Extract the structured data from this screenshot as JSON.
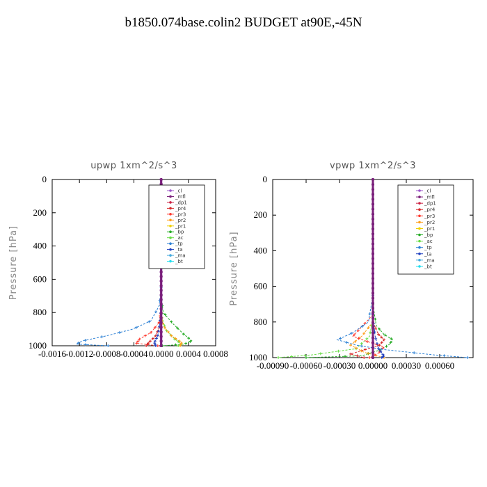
{
  "title": "b1850.074base.colin2  BUDGET at90E,-45N",
  "legend_entries": [
    "_cl",
    "_mfl",
    "_dp1",
    "_pr4",
    "_pr3",
    "_pr2",
    "_pr1",
    "_bp",
    "_ac",
    "_tp",
    "_ta",
    "_ma",
    "_bt"
  ],
  "legend_colors": [
    "#9b55c9",
    "#7a1f7a",
    "#cc2244",
    "#d62728",
    "#ff3b30",
    "#ff9f1c",
    "#f0d000",
    "#22aa22",
    "#66dd44",
    "#2a7fd4",
    "#1f3fbf",
    "#44aadd",
    "#22ddee"
  ],
  "chart_data": [
    {
      "type": "line",
      "title": "upwp   1xm^2/s^3",
      "ylabel": "Pressure [hPa]",
      "xlim": [
        -0.0016,
        0.0008
      ],
      "ylim": [
        1000,
        0
      ],
      "x_ticks": [
        -0.0016,
        -0.0012,
        -0.0008,
        -0.0004,
        0.0,
        0.0004,
        0.0008
      ],
      "x_tick_labels": [
        "-0.0016",
        "-0.0012",
        "-0.0008",
        "-0.0004",
        "0.0000",
        "0.0004",
        "0.0008"
      ],
      "y_ticks": [
        0,
        200,
        400,
        600,
        800,
        1000
      ],
      "legend_position": "top-right",
      "series": [
        {
          "name": "_bp",
          "pressure": [
            700,
            800,
            870,
            930,
            970,
            990,
            1000
          ],
          "values": [
            0,
            3e-05,
            0.00018,
            0.00033,
            0.00045,
            0.00034,
            2e-05
          ]
        },
        {
          "name": "_ac",
          "pressure": [
            760,
            850,
            910,
            960,
            990,
            1000
          ],
          "values": [
            0,
            2e-05,
            8e-05,
            0.0002,
            0.0003,
            0.00025
          ]
        },
        {
          "name": "_pr2",
          "pressure": [
            800,
            880,
            940,
            980,
            1000
          ],
          "values": [
            0,
            3e-05,
            0.00015,
            0.0003,
            0.00028
          ]
        },
        {
          "name": "_pr3",
          "pressure": [
            780,
            860,
            920,
            960,
            985,
            1000
          ],
          "values": [
            0,
            -3e-05,
            -0.00015,
            -0.00032,
            -0.00036,
            -5e-05
          ]
        },
        {
          "name": "_pr4",
          "pressure": [
            800,
            880,
            940,
            980,
            1000
          ],
          "values": [
            0,
            -2e-05,
            -8e-05,
            -0.00018,
            -0.00022
          ]
        },
        {
          "name": "_tp",
          "pressure": [
            650,
            760,
            850,
            900,
            940,
            970,
            990,
            1000
          ],
          "values": [
            0,
            -3e-05,
            -0.00015,
            -0.00042,
            -0.0008,
            -0.00115,
            -0.00125,
            -0.00078
          ]
        },
        {
          "name": "_ta",
          "pressure": [
            760,
            870,
            940,
            980,
            1000
          ],
          "values": [
            0,
            -2e-05,
            -5e-05,
            -0.0001,
            -8e-05
          ]
        },
        {
          "name": "_cl",
          "pressure": [
            0,
            1000
          ],
          "values": [
            0,
            0
          ]
        },
        {
          "name": "_mfl",
          "pressure": [
            0,
            1000
          ],
          "values": [
            0,
            0
          ]
        }
      ]
    },
    {
      "type": "line",
      "title": "vpwp   1xm^2/s^3",
      "ylabel": "Pressure [hPa]",
      "xlim": [
        -0.0009,
        0.0009
      ],
      "ylim": [
        1000,
        0
      ],
      "x_ticks": [
        -0.0009,
        -0.0006,
        -0.0003,
        0.0,
        0.0003,
        0.0006
      ],
      "x_tick_labels": [
        "-0.00090",
        "-0.00060",
        "-0.00030",
        "0.00000",
        "0.00030",
        "0.00060"
      ],
      "y_ticks": [
        0,
        200,
        400,
        600,
        800,
        1000
      ],
      "legend_position": "top-right",
      "series": [
        {
          "name": "_bp",
          "pressure": [
            700,
            820,
            870,
            900,
            930,
            960,
            990,
            1000
          ],
          "values": [
            0,
            3e-05,
            0.0001,
            0.00018,
            0.00014,
            5e-05,
            -0.0001,
            -0.0006
          ]
        },
        {
          "name": "_ac",
          "pressure": [
            780,
            880,
            950,
            985,
            1000
          ],
          "values": [
            0,
            -3e-05,
            -0.00015,
            -0.00055,
            -0.00085
          ]
        },
        {
          "name": "_pr2",
          "pressure": [
            800,
            880,
            930,
            970,
            1000
          ],
          "values": [
            0,
            -0.0001,
            -0.0002,
            -8e-05,
            0.0001
          ]
        },
        {
          "name": "_pr3",
          "pressure": [
            760,
            840,
            880,
            910,
            940,
            975,
            1000
          ],
          "values": [
            0,
            -0.00012,
            -0.00018,
            -5e-05,
            0.0001,
            5e-05,
            -3e-05
          ]
        },
        {
          "name": "_pr4",
          "pressure": [
            800,
            870,
            900,
            930,
            980,
            1000
          ],
          "values": [
            0,
            5e-05,
            0.0001,
            6e-05,
            -0.0002,
            -8e-05
          ]
        },
        {
          "name": "_tp",
          "pressure": [
            650,
            800,
            860,
            900,
            930,
            955,
            985,
            1000
          ],
          "values": [
            0,
            -4e-05,
            -0.00018,
            -0.00032,
            -0.00015,
            0.0001,
            0.00055,
            0.00085
          ]
        },
        {
          "name": "_ta",
          "pressure": [
            760,
            880,
            950,
            990,
            1000
          ],
          "values": [
            0,
            2e-05,
            5e-05,
            0.0001,
            8e-05
          ]
        },
        {
          "name": "_cl",
          "pressure": [
            0,
            1000
          ],
          "values": [
            0,
            0
          ]
        },
        {
          "name": "_mfl",
          "pressure": [
            0,
            1000
          ],
          "values": [
            0,
            0
          ]
        }
      ]
    }
  ]
}
